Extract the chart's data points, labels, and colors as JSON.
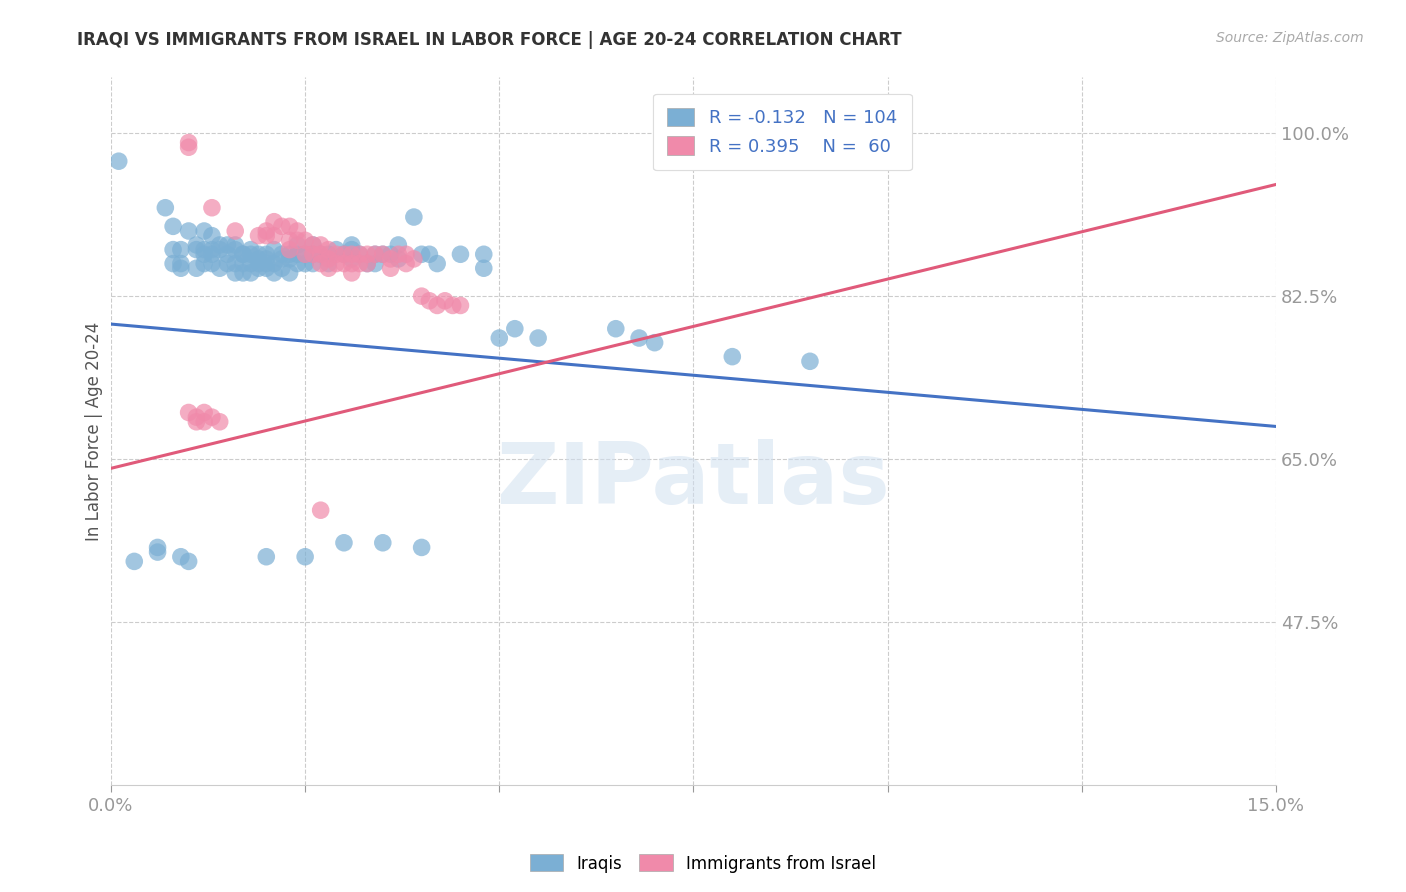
{
  "title": "IRAQI VS IMMIGRANTS FROM ISRAEL IN LABOR FORCE | AGE 20-24 CORRELATION CHART",
  "source": "Source: ZipAtlas.com",
  "ylabel": "In Labor Force | Age 20-24",
  "xlim": [
    0.0,
    0.15
  ],
  "ylim": [
    0.3,
    1.06
  ],
  "xtick_positions": [
    0.0,
    0.025,
    0.05,
    0.075,
    0.1,
    0.125,
    0.15
  ],
  "ytick_positions": [
    0.475,
    0.65,
    0.825,
    1.0
  ],
  "yticklabels": [
    "47.5%",
    "65.0%",
    "82.5%",
    "100.0%"
  ],
  "blue_scatter_color": "#7bafd4",
  "pink_scatter_color": "#f08aaa",
  "blue_line_color": "#4472c4",
  "pink_line_color": "#e05a7a",
  "legend_blue_r": "-0.132",
  "legend_blue_n": "104",
  "legend_pink_r": "0.395",
  "legend_pink_n": "60",
  "watermark": "ZIPatlas",
  "blue_line": {
    "x0": 0.0,
    "y0": 0.795,
    "x1": 0.15,
    "y1": 0.685
  },
  "pink_line": {
    "x0": 0.0,
    "y0": 0.64,
    "x1": 0.15,
    "y1": 0.945
  },
  "blue_scatter": [
    [
      0.001,
      0.97
    ],
    [
      0.007,
      0.92
    ],
    [
      0.008,
      0.9
    ],
    [
      0.008,
      0.875
    ],
    [
      0.008,
      0.86
    ],
    [
      0.009,
      0.875
    ],
    [
      0.009,
      0.855
    ],
    [
      0.009,
      0.86
    ],
    [
      0.01,
      0.895
    ],
    [
      0.011,
      0.88
    ],
    [
      0.011,
      0.875
    ],
    [
      0.011,
      0.855
    ],
    [
      0.012,
      0.895
    ],
    [
      0.012,
      0.875
    ],
    [
      0.012,
      0.86
    ],
    [
      0.012,
      0.87
    ],
    [
      0.013,
      0.89
    ],
    [
      0.013,
      0.875
    ],
    [
      0.013,
      0.87
    ],
    [
      0.013,
      0.86
    ],
    [
      0.014,
      0.88
    ],
    [
      0.014,
      0.875
    ],
    [
      0.014,
      0.855
    ],
    [
      0.015,
      0.88
    ],
    [
      0.015,
      0.87
    ],
    [
      0.015,
      0.86
    ],
    [
      0.016,
      0.88
    ],
    [
      0.016,
      0.86
    ],
    [
      0.016,
      0.85
    ],
    [
      0.016,
      0.875
    ],
    [
      0.017,
      0.87
    ],
    [
      0.017,
      0.86
    ],
    [
      0.017,
      0.85
    ],
    [
      0.017,
      0.87
    ],
    [
      0.018,
      0.87
    ],
    [
      0.018,
      0.86
    ],
    [
      0.018,
      0.85
    ],
    [
      0.018,
      0.875
    ],
    [
      0.019,
      0.865
    ],
    [
      0.019,
      0.855
    ],
    [
      0.019,
      0.87
    ],
    [
      0.019,
      0.86
    ],
    [
      0.02,
      0.865
    ],
    [
      0.02,
      0.855
    ],
    [
      0.02,
      0.87
    ],
    [
      0.02,
      0.86
    ],
    [
      0.021,
      0.875
    ],
    [
      0.021,
      0.86
    ],
    [
      0.021,
      0.85
    ],
    [
      0.022,
      0.87
    ],
    [
      0.022,
      0.855
    ],
    [
      0.022,
      0.865
    ],
    [
      0.023,
      0.865
    ],
    [
      0.023,
      0.85
    ],
    [
      0.023,
      0.87
    ],
    [
      0.024,
      0.87
    ],
    [
      0.024,
      0.86
    ],
    [
      0.024,
      0.88
    ],
    [
      0.025,
      0.87
    ],
    [
      0.025,
      0.86
    ],
    [
      0.026,
      0.88
    ],
    [
      0.026,
      0.87
    ],
    [
      0.026,
      0.86
    ],
    [
      0.027,
      0.87
    ],
    [
      0.028,
      0.87
    ],
    [
      0.028,
      0.86
    ],
    [
      0.029,
      0.875
    ],
    [
      0.03,
      0.87
    ],
    [
      0.031,
      0.88
    ],
    [
      0.031,
      0.875
    ],
    [
      0.031,
      0.865
    ],
    [
      0.032,
      0.87
    ],
    [
      0.033,
      0.86
    ],
    [
      0.034,
      0.87
    ],
    [
      0.034,
      0.86
    ],
    [
      0.035,
      0.87
    ],
    [
      0.036,
      0.87
    ],
    [
      0.037,
      0.88
    ],
    [
      0.037,
      0.865
    ],
    [
      0.039,
      0.91
    ],
    [
      0.04,
      0.87
    ],
    [
      0.041,
      0.87
    ],
    [
      0.042,
      0.86
    ],
    [
      0.045,
      0.87
    ],
    [
      0.048,
      0.87
    ],
    [
      0.048,
      0.855
    ],
    [
      0.05,
      0.78
    ],
    [
      0.052,
      0.79
    ],
    [
      0.055,
      0.78
    ],
    [
      0.065,
      0.79
    ],
    [
      0.068,
      0.78
    ],
    [
      0.07,
      0.775
    ],
    [
      0.08,
      0.76
    ],
    [
      0.09,
      0.755
    ],
    [
      0.003,
      0.54
    ],
    [
      0.006,
      0.555
    ],
    [
      0.006,
      0.55
    ],
    [
      0.009,
      0.545
    ],
    [
      0.01,
      0.54
    ],
    [
      0.02,
      0.545
    ],
    [
      0.025,
      0.545
    ],
    [
      0.03,
      0.56
    ],
    [
      0.035,
      0.56
    ],
    [
      0.04,
      0.555
    ]
  ],
  "pink_scatter": [
    [
      0.01,
      0.99
    ],
    [
      0.01,
      0.985
    ],
    [
      0.013,
      0.92
    ],
    [
      0.016,
      0.895
    ],
    [
      0.019,
      0.89
    ],
    [
      0.02,
      0.895
    ],
    [
      0.02,
      0.89
    ],
    [
      0.021,
      0.905
    ],
    [
      0.021,
      0.89
    ],
    [
      0.022,
      0.9
    ],
    [
      0.023,
      0.9
    ],
    [
      0.023,
      0.885
    ],
    [
      0.023,
      0.875
    ],
    [
      0.024,
      0.895
    ],
    [
      0.024,
      0.885
    ],
    [
      0.025,
      0.885
    ],
    [
      0.025,
      0.87
    ],
    [
      0.026,
      0.88
    ],
    [
      0.026,
      0.87
    ],
    [
      0.027,
      0.88
    ],
    [
      0.027,
      0.87
    ],
    [
      0.027,
      0.86
    ],
    [
      0.028,
      0.875
    ],
    [
      0.028,
      0.865
    ],
    [
      0.028,
      0.855
    ],
    [
      0.029,
      0.87
    ],
    [
      0.029,
      0.86
    ],
    [
      0.03,
      0.87
    ],
    [
      0.03,
      0.86
    ],
    [
      0.031,
      0.87
    ],
    [
      0.031,
      0.86
    ],
    [
      0.031,
      0.85
    ],
    [
      0.032,
      0.87
    ],
    [
      0.032,
      0.86
    ],
    [
      0.033,
      0.87
    ],
    [
      0.033,
      0.86
    ],
    [
      0.034,
      0.87
    ],
    [
      0.035,
      0.87
    ],
    [
      0.036,
      0.865
    ],
    [
      0.036,
      0.855
    ],
    [
      0.037,
      0.87
    ],
    [
      0.038,
      0.87
    ],
    [
      0.038,
      0.86
    ],
    [
      0.039,
      0.865
    ],
    [
      0.04,
      0.825
    ],
    [
      0.041,
      0.82
    ],
    [
      0.042,
      0.815
    ],
    [
      0.043,
      0.82
    ],
    [
      0.044,
      0.815
    ],
    [
      0.045,
      0.815
    ],
    [
      0.01,
      0.7
    ],
    [
      0.011,
      0.695
    ],
    [
      0.011,
      0.69
    ],
    [
      0.012,
      0.7
    ],
    [
      0.012,
      0.69
    ],
    [
      0.013,
      0.695
    ],
    [
      0.014,
      0.69
    ],
    [
      0.027,
      0.595
    ],
    [
      0.09,
      0.995
    ],
    [
      0.092,
      0.995
    ]
  ]
}
